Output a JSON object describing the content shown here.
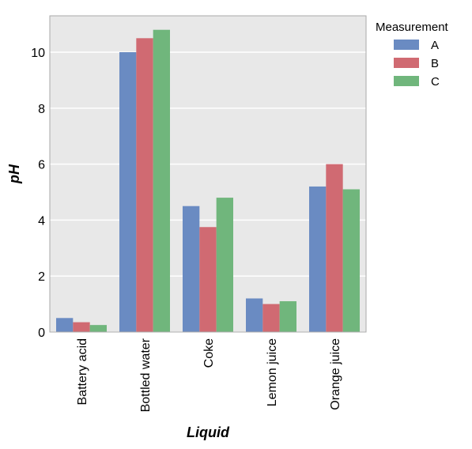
{
  "chart_data": {
    "type": "bar",
    "categories": [
      "Battery acid",
      "Bottled water",
      "Coke",
      "Lemon juice",
      "Orange juice"
    ],
    "series": [
      {
        "name": "A",
        "values": [
          0.5,
          10.0,
          4.5,
          1.2,
          5.2
        ],
        "color": "#6a8bc2"
      },
      {
        "name": "B",
        "values": [
          0.35,
          10.5,
          3.75,
          1.0,
          6.0
        ],
        "color": "#d06a72"
      },
      {
        "name": "C",
        "values": [
          0.25,
          10.8,
          4.8,
          1.1,
          5.1
        ],
        "color": "#70b67c"
      }
    ],
    "xlabel": "Liquid",
    "ylabel": "pH",
    "ylim": [
      0,
      11.3
    ],
    "yticks": [
      0,
      2,
      4,
      6,
      8,
      10
    ],
    "legend_title": "Measurement",
    "legend_position": "outside-top-right",
    "grid": true,
    "background": "#e8e8e8"
  }
}
